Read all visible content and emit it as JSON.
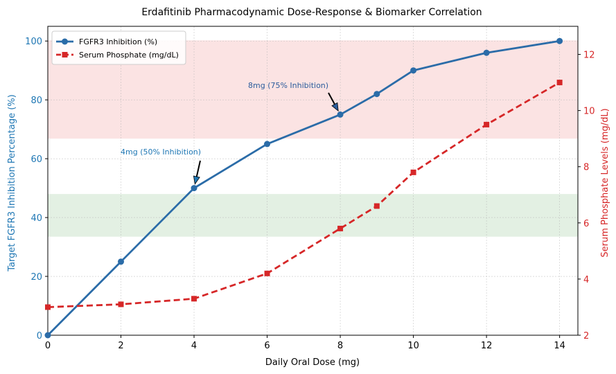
{
  "chart_data": {
    "type": "line",
    "title": "Erdafitinib Pharmacodynamic Dose-Response & Biomarker Correlation",
    "xlabel": "Daily Oral Dose (mg)",
    "ylabel_left": "Target FGFR3 Inhibition Percentage (%)",
    "ylabel_right": "Serum Phosphate Levels (mg/dL)",
    "xlim": [
      0,
      14.5
    ],
    "ylim_left": [
      0,
      105
    ],
    "ylim_right": [
      2,
      13
    ],
    "x_ticks": [
      "0",
      "2",
      "4",
      "6",
      "8",
      "10",
      "12",
      "14"
    ],
    "y_left_ticks": [
      "0",
      "20",
      "40",
      "60",
      "80",
      "100"
    ],
    "y_right_ticks": [
      "2",
      "4",
      "6",
      "8",
      "10",
      "12"
    ],
    "grid": true,
    "legend_position": "top-left",
    "series": [
      {
        "name": "FGFR3 Inhibition (%)",
        "axis": "left",
        "color": "#2b6ca8",
        "marker": "circle",
        "linestyle": "solid",
        "x": [
          0,
          2,
          4,
          6,
          8,
          9,
          10,
          12,
          14
        ],
        "y": [
          0,
          25,
          50,
          65,
          75,
          82,
          90,
          96,
          100
        ]
      },
      {
        "name": "Serum Phosphate (mg/dL)",
        "axis": "right",
        "color": "#d62728",
        "marker": "square",
        "linestyle": "dashed",
        "x": [
          0,
          2,
          4,
          6,
          8,
          9,
          10,
          12,
          14
        ],
        "y": [
          3.0,
          3.1,
          3.3,
          4.2,
          5.8,
          6.6,
          7.8,
          9.5,
          11.0
        ]
      }
    ],
    "bands": [
      {
        "axis": "right",
        "from": 9.0,
        "to": 12.5,
        "color": "#f8c8c8"
      },
      {
        "axis": "left",
        "from": 33.5,
        "to": 48,
        "color": "#c8e2c8"
      }
    ],
    "annotations": [
      {
        "text": "4mg (50% Inhibition)",
        "x": 4,
        "y": 50,
        "color": "#1f77b4"
      },
      {
        "text": "8mg (75% Inhibition)",
        "x": 8,
        "y": 75,
        "color": "#2b5c9c"
      }
    ]
  }
}
